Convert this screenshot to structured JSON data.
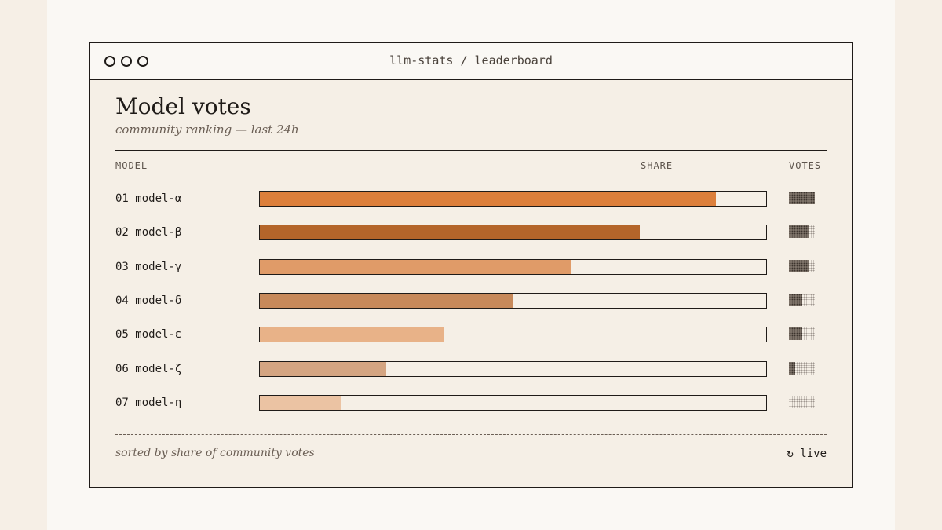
{
  "window": {
    "title": "llm-stats / leaderboard"
  },
  "header": {
    "title": "Model votes",
    "subtitle": "community ranking — last 24h"
  },
  "columns": {
    "model": "MODEL",
    "share": "SHARE",
    "votes": "VOTES"
  },
  "rows": [
    {
      "label": "01 model-α",
      "share": 0.9,
      "votes": 1.0,
      "color": "#dc7f3b"
    },
    {
      "label": "02 model-β",
      "share": 0.75,
      "votes": 0.75,
      "color": "#b4652a"
    },
    {
      "label": "03 model-γ",
      "share": 0.615,
      "votes": 0.75,
      "color": "#e09b68"
    },
    {
      "label": "04 model-δ",
      "share": 0.5,
      "votes": 0.5,
      "color": "#c7895a"
    },
    {
      "label": "05 model-ε",
      "share": 0.365,
      "votes": 0.5,
      "color": "#e8b288"
    },
    {
      "label": "06 model-ζ",
      "share": 0.25,
      "votes": 0.25,
      "color": "#d4a582"
    },
    {
      "label": "07 model-η",
      "share": 0.16,
      "votes": 0.0,
      "color": "#ebc3a3"
    }
  ],
  "footer": {
    "note": "sorted by share of community votes",
    "live_icon": "refresh-icon",
    "live_glyph": "↻",
    "live_label": "live"
  }
}
